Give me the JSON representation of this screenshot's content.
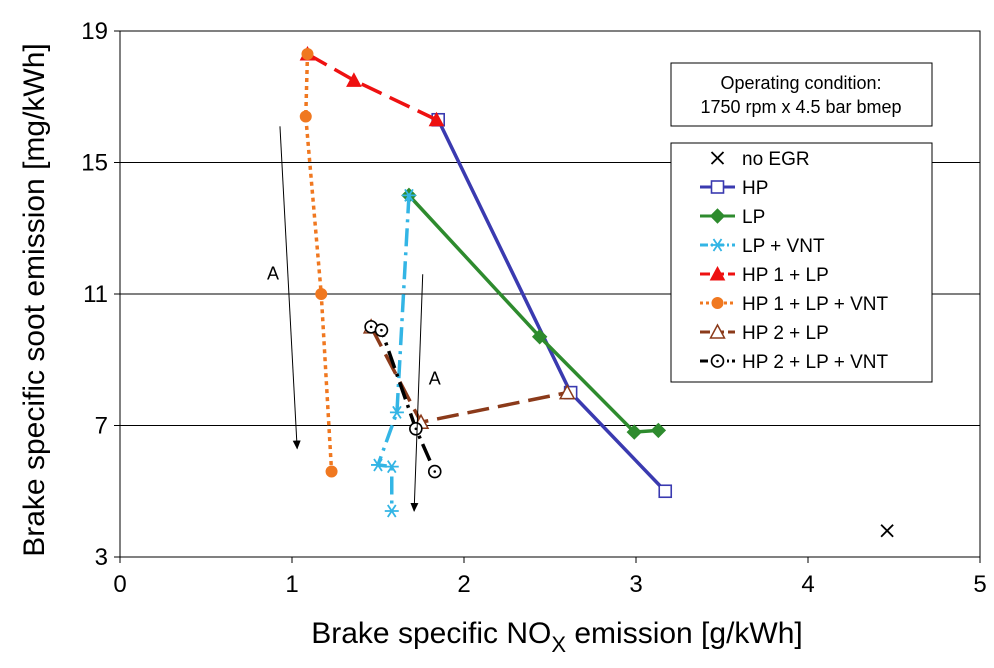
{
  "chart_data": {
    "type": "scatter",
    "xlabel": "Brake specific NO",
    "xlabel_sub": "X",
    "xlabel_suffix": " emission [g/kWh]",
    "ylabel": "Brake specific soot emission [mg/kWh]",
    "xlim": [
      0,
      5
    ],
    "ylim": [
      3,
      19
    ],
    "xticks": [
      0,
      1,
      2,
      3,
      4,
      5
    ],
    "yticks": [
      3,
      7,
      11,
      15,
      19
    ],
    "grid": "horizontal",
    "legend_placement": "right",
    "annotation_box": [
      "Operating condition:",
      "1750 rpm x 4.5 bar bmep"
    ],
    "arrow_labels": [
      {
        "text": "A",
        "from": [
          0.93,
          16.1
        ],
        "to": [
          1.03,
          6.3
        ]
      },
      {
        "text": "A",
        "from": [
          1.76,
          11.6
        ],
        "to": [
          1.71,
          4.4
        ]
      }
    ],
    "series": [
      {
        "name": "no EGR",
        "color": "#000000",
        "marker": "x",
        "line": "none",
        "x": [
          4.46
        ],
        "y": [
          3.8
        ]
      },
      {
        "name": "HP",
        "color": "#3a3ab0",
        "marker": "open-square",
        "line": "solid",
        "x": [
          1.85,
          2.62,
          3.17
        ],
        "y": [
          16.3,
          8.0,
          5.0
        ]
      },
      {
        "name": "LP",
        "color": "#2e8b2e",
        "marker": "diamond",
        "line": "solid",
        "x": [
          1.68,
          2.44,
          2.99,
          3.13
        ],
        "y": [
          14.0,
          9.7,
          6.8,
          6.85
        ]
      },
      {
        "name": "LP + VNT",
        "color": "#33b5e5",
        "marker": "asterisk",
        "line": "dashdot",
        "x": [
          1.68,
          1.61,
          1.5,
          1.58,
          1.58
        ],
        "y": [
          14.0,
          7.4,
          5.8,
          5.75,
          4.4
        ]
      },
      {
        "name": "HP 1 + LP",
        "color": "#ee1111",
        "marker": "triangle",
        "line": "dash",
        "x": [
          1.09,
          1.36,
          1.84
        ],
        "y": [
          18.3,
          17.5,
          16.3
        ]
      },
      {
        "name": "HP 1 + LP + VNT",
        "color": "#f07820",
        "marker": "circle",
        "line": "dot",
        "x": [
          1.09,
          1.08,
          1.17,
          1.23
        ],
        "y": [
          18.3,
          16.4,
          11.0,
          5.6
        ]
      },
      {
        "name": "HP 2 + LP",
        "color": "#8b3a1a",
        "marker": "open-triangle",
        "line": "dash",
        "x": [
          1.46,
          1.75,
          2.6
        ],
        "y": [
          10.0,
          7.1,
          8.0
        ]
      },
      {
        "name": "HP 2 + LP + VNT",
        "color": "#000000",
        "marker": "open-circle",
        "line": "dashdot",
        "x": [
          1.46,
          1.52,
          1.72,
          1.83
        ],
        "y": [
          10.0,
          9.9,
          6.9,
          5.6
        ]
      }
    ]
  }
}
